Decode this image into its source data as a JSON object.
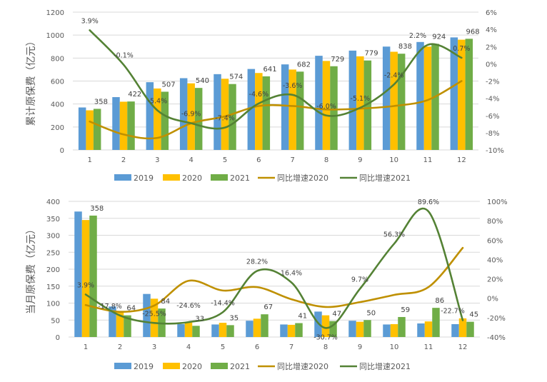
{
  "colors": {
    "s2019": "#5B9BD5",
    "s2020": "#FFC000",
    "s2021": "#70AD47",
    "g2020": "#BF9000",
    "g2021": "#548235",
    "grid": "#D9D9D9",
    "text": "#595959"
  },
  "chart_data": [
    {
      "type": "bar+line",
      "ylabel": "累计原保费（亿元）",
      "categories": [
        "1",
        "2",
        "3",
        "4",
        "5",
        "6",
        "7",
        "8",
        "9",
        "10",
        "11",
        "12"
      ],
      "ylim": [
        0,
        1200
      ],
      "yticks": [
        "0",
        "200",
        "400",
        "600",
        "800",
        "1000",
        "1200"
      ],
      "y2lim": [
        -10,
        6
      ],
      "y2ticks": [
        "-10%",
        "-8%",
        "-6%",
        "-4%",
        "-2%",
        "0%",
        "2%",
        "4%",
        "6%"
      ],
      "grid": true,
      "legend": "bottom",
      "bar_series": [
        {
          "name": "2019",
          "values": [
            370,
            460,
            590,
            625,
            660,
            705,
            745,
            820,
            865,
            900,
            940,
            980
          ]
        },
        {
          "name": "2020",
          "values": [
            345,
            420,
            535,
            580,
            620,
            670,
            700,
            775,
            815,
            855,
            900,
            960
          ]
        },
        {
          "name": "2021",
          "values": [
            358,
            422,
            507,
            540,
            574,
            641,
            682,
            729,
            779,
            838,
            924,
            968
          ],
          "labels": [
            "358",
            "422",
            "507",
            "540",
            "574",
            "641",
            "682",
            "729",
            "779",
            "838",
            "924",
            "968"
          ]
        }
      ],
      "line_series": [
        {
          "name": "同比增速2020",
          "values": [
            -6.7,
            -8.2,
            -8.6,
            -6.9,
            -6.1,
            -4.9,
            -4.9,
            -5.3,
            -5.2,
            -4.9,
            -4.2,
            -2.0
          ]
        },
        {
          "name": "同比增速2021",
          "values": [
            3.9,
            -0.1,
            -5.4,
            -6.9,
            -7.4,
            -4.6,
            -3.6,
            -6.0,
            -5.1,
            -2.4,
            2.2,
            0.7
          ],
          "labels": [
            "3.9%",
            "-0.1%",
            "-5.4%",
            "-6.9%",
            "-7.4%",
            "-4.6%",
            "-3.6%",
            "-6.0%",
            "-5.1%",
            "-2.4%",
            "2.2%",
            "0.7%"
          ]
        }
      ]
    },
    {
      "type": "bar+line",
      "ylabel": "当月原保费（亿元）",
      "categories": [
        "1",
        "2",
        "3",
        "4",
        "5",
        "6",
        "7",
        "8",
        "9",
        "10",
        "11",
        "12"
      ],
      "ylim": [
        0,
        400
      ],
      "yticks": [
        "0",
        "50",
        "100",
        "150",
        "200",
        "250",
        "300",
        "350",
        "400"
      ],
      "y2lim": [
        -40,
        100
      ],
      "y2ticks": [
        "-40%",
        "-20%",
        "0%",
        "20%",
        "40%",
        "60%",
        "80%",
        "100%"
      ],
      "grid": true,
      "legend": "bottom",
      "bar_series": [
        {
          "name": "2019",
          "values": [
            370,
            90,
            127,
            38,
            37,
            48,
            37,
            75,
            48,
            37,
            40,
            38
          ]
        },
        {
          "name": "2020",
          "values": [
            345,
            75,
            113,
            43,
            42,
            54,
            36,
            64,
            45,
            38,
            46,
            55
          ]
        },
        {
          "name": "2021",
          "values": [
            358,
            64,
            84,
            33,
            35,
            67,
            41,
            47,
            50,
            59,
            86,
            45
          ],
          "labels": [
            "358",
            "64",
            "84",
            "33",
            "35",
            "67",
            "41",
            "47",
            "50",
            "59",
            "86",
            "45"
          ]
        }
      ],
      "line_series": [
        {
          "name": "同比增速2020",
          "values": [
            -7,
            -14,
            -7.5,
            18,
            8,
            11.5,
            -1,
            -9,
            -4,
            3.5,
            11.5,
            52
          ]
        },
        {
          "name": "同比增速2021",
          "values": [
            3.9,
            -17.8,
            -25.5,
            -24.6,
            -14.4,
            28.2,
            16.4,
            -30.7,
            9.7,
            56.3,
            89.6,
            -22.7
          ],
          "labels": [
            "3.9%",
            "-17.8%",
            "-25.5%",
            "-24.6%",
            "-14.4%",
            "28.2%",
            "16.4%",
            "-30.7%",
            "9.7%",
            "56.3%",
            "89.6%",
            "-22.7%"
          ]
        }
      ]
    }
  ]
}
